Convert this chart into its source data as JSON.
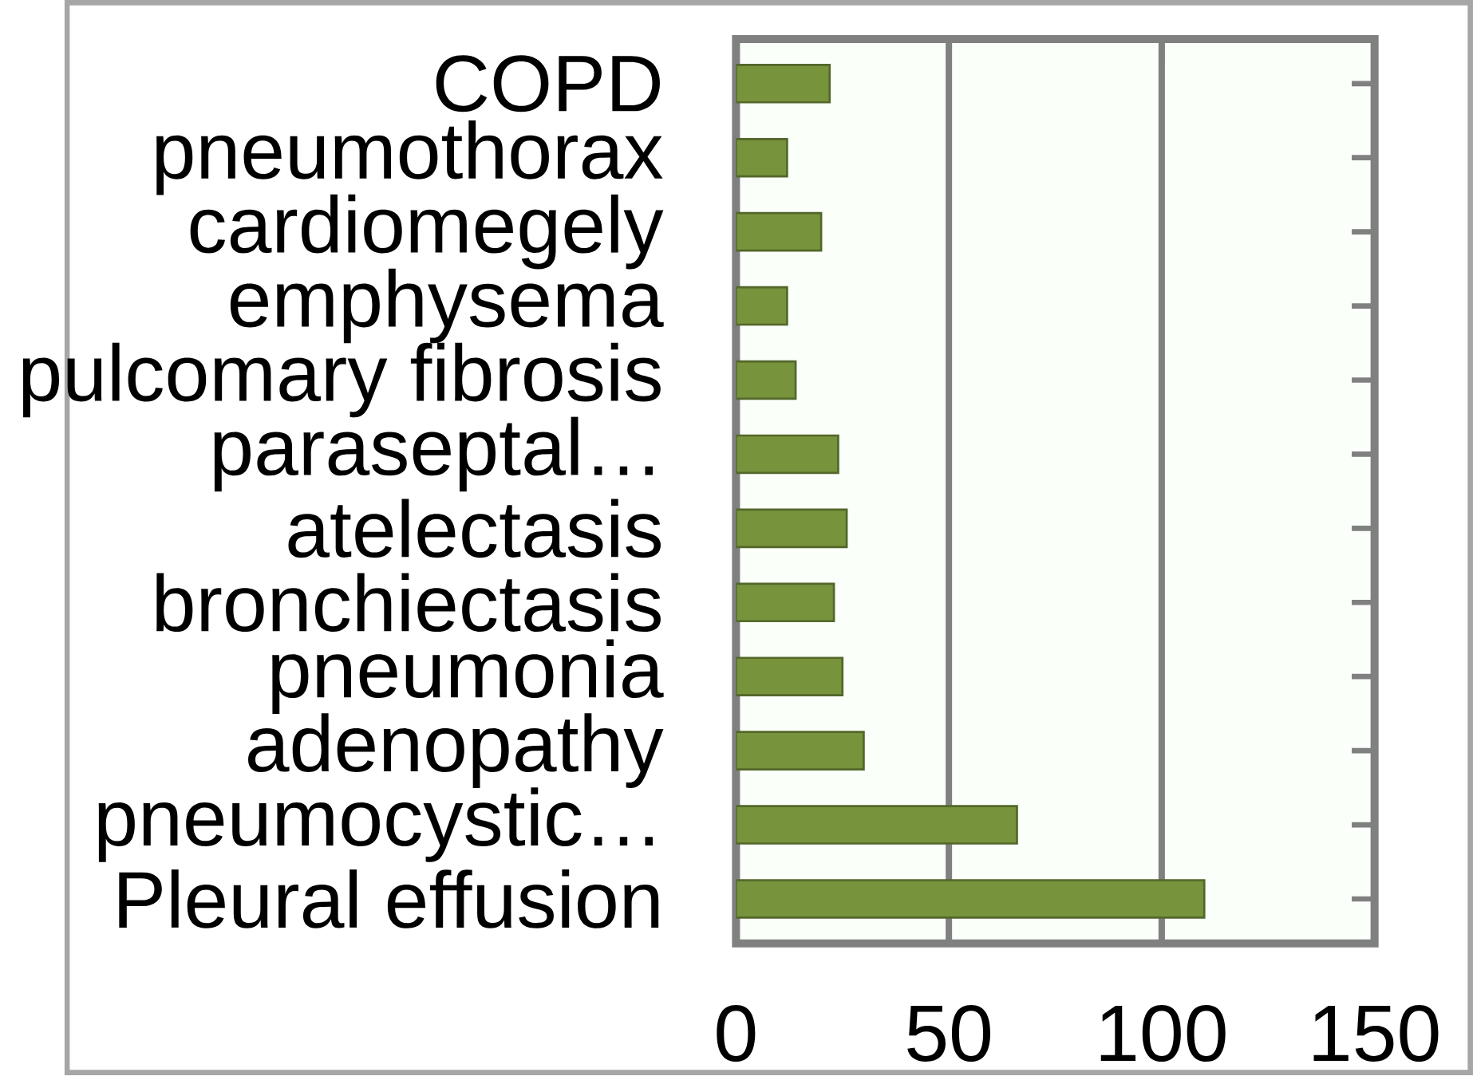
{
  "chart_data": {
    "type": "bar",
    "orientation": "horizontal",
    "categories": [
      "COPD",
      "pneumothorax",
      "cardiomegely",
      "emphysema",
      "pulcomary fibrosis",
      "paraseptal…",
      "atelectasis",
      "bronchiectasis",
      "pneumonia",
      "adenopathy",
      "pneumocystic…",
      "Pleural effusion"
    ],
    "values": [
      22,
      12,
      20,
      12,
      14,
      24,
      26,
      23,
      25,
      30,
      66,
      110
    ],
    "color": "#77933c",
    "xlim": [
      0,
      150
    ],
    "xticks": [
      0,
      50,
      100,
      150
    ],
    "grid": "x"
  }
}
